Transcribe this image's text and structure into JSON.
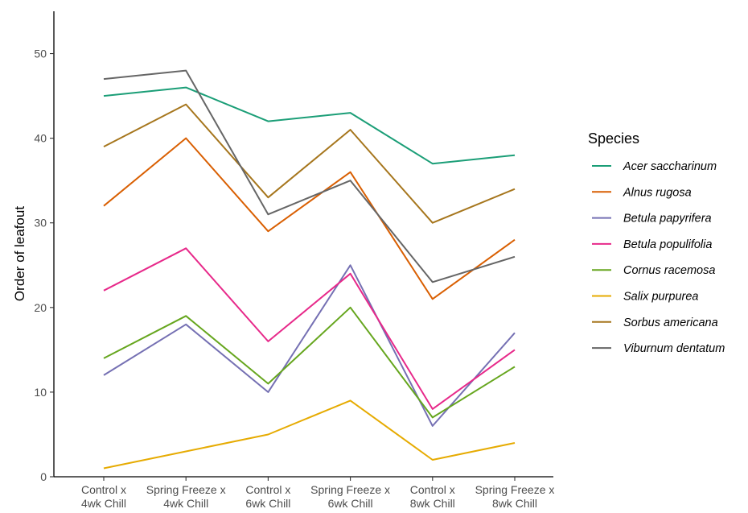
{
  "chart_data": {
    "type": "line",
    "title": "",
    "xlabel": "",
    "ylabel": "Order of leafout",
    "ylim": [
      0,
      55
    ],
    "yticks": [
      0,
      10,
      20,
      30,
      40,
      50
    ],
    "grid": false,
    "legend_position": "right",
    "legend_title": "Species",
    "categories": [
      [
        "Control x",
        "4wk Chill"
      ],
      [
        "Spring Freeze x",
        "4wk Chill"
      ],
      [
        "Control x",
        "6wk Chill"
      ],
      [
        "Spring Freeze x",
        "6wk Chill"
      ],
      [
        "Control x",
        "8wk Chill"
      ],
      [
        "Spring Freeze x",
        "8wk Chill"
      ]
    ],
    "series": [
      {
        "name": "Acer saccharinum",
        "color": "#1b9e77",
        "values": [
          45,
          46,
          42,
          43,
          37,
          38
        ]
      },
      {
        "name": "Alnus rugosa",
        "color": "#d95f02",
        "values": [
          32,
          40,
          29,
          36,
          21,
          28
        ]
      },
      {
        "name": "Betula papyrifera",
        "color": "#7570b3",
        "values": [
          12,
          18,
          10,
          25,
          6,
          17
        ]
      },
      {
        "name": "Betula populifolia",
        "color": "#e7298a",
        "values": [
          22,
          27,
          16,
          24,
          8,
          15
        ]
      },
      {
        "name": "Cornus racemosa",
        "color": "#66a61e",
        "values": [
          14,
          19,
          11,
          20,
          7,
          13
        ]
      },
      {
        "name": "Salix purpurea",
        "color": "#e6ab02",
        "values": [
          1,
          3,
          5,
          9,
          2,
          4
        ]
      },
      {
        "name": "Sorbus americana",
        "color": "#a6761d",
        "values": [
          39,
          44,
          33,
          41,
          30,
          34
        ]
      },
      {
        "name": "Viburnum dentatum",
        "color": "#666666",
        "values": [
          47,
          48,
          31,
          35,
          23,
          26
        ]
      }
    ]
  }
}
